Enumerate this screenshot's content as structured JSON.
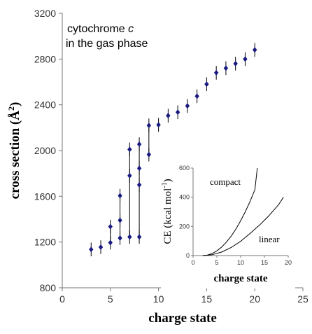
{
  "chart_data": [
    {
      "type": "scatter",
      "title": "",
      "annotation_line1": "cytochrome",
      "annotation_italic": "c",
      "annotation_line2": "in the gas phase",
      "xlabel": "charge state",
      "ylabel_main": "cross section (Å",
      "ylabel_sup": "2",
      "ylabel_close": ")",
      "xlim": [
        0,
        25
      ],
      "ylim": [
        800,
        3200
      ],
      "xticks": [
        "0",
        "5",
        "10",
        "15",
        "20",
        "25"
      ],
      "yticks": [
        "800",
        "1200",
        "1600",
        "2000",
        "2400",
        "2800",
        "3200"
      ],
      "grid": false,
      "error_bar": 60,
      "points": [
        {
          "x": 3,
          "y": 1135
        },
        {
          "x": 4,
          "y": 1155
        },
        {
          "x": 5,
          "y": 1195
        },
        {
          "x": 5,
          "y": 1335
        },
        {
          "x": 6,
          "y": 1235
        },
        {
          "x": 6,
          "y": 1390
        },
        {
          "x": 6,
          "y": 1605
        },
        {
          "x": 7,
          "y": 1245
        },
        {
          "x": 7,
          "y": 1780
        },
        {
          "x": 7,
          "y": 2010
        },
        {
          "x": 8,
          "y": 1245
        },
        {
          "x": 8,
          "y": 1700
        },
        {
          "x": 8,
          "y": 1845
        },
        {
          "x": 8,
          "y": 2055
        },
        {
          "x": 9,
          "y": 1965
        },
        {
          "x": 9,
          "y": 2220
        },
        {
          "x": 10,
          "y": 2225
        },
        {
          "x": 11,
          "y": 2305
        },
        {
          "x": 12,
          "y": 2335
        },
        {
          "x": 13,
          "y": 2390
        },
        {
          "x": 14,
          "y": 2475
        },
        {
          "x": 15,
          "y": 2580
        },
        {
          "x": 16,
          "y": 2680
        },
        {
          "x": 17,
          "y": 2720
        },
        {
          "x": 18,
          "y": 2760
        },
        {
          "x": 19,
          "y": 2800
        },
        {
          "x": 20,
          "y": 2880
        }
      ],
      "connectors": [
        {
          "x": 5,
          "y1": 1195,
          "y2": 1335
        },
        {
          "x": 6,
          "y1": 1235,
          "y2": 1605
        },
        {
          "x": 7,
          "y1": 1245,
          "y2": 2010
        },
        {
          "x": 8,
          "y1": 1245,
          "y2": 2055
        },
        {
          "x": 9,
          "y1": 1965,
          "y2": 2220
        }
      ]
    },
    {
      "type": "line",
      "xlabel": "charge state",
      "ylabel_main": "CE (kcal mol",
      "ylabel_sup": "-1",
      "ylabel_close": ")",
      "xlim": [
        0,
        20
      ],
      "ylim": [
        0,
        600
      ],
      "xticks": [
        "0",
        "5",
        "10",
        "15",
        "20"
      ],
      "yticks": [
        "0",
        "200",
        "400",
        "600"
      ],
      "series": [
        {
          "name": "compact",
          "x": [
            2,
            3,
            4,
            5,
            6,
            7,
            8,
            9,
            10,
            11,
            12,
            13,
            13.5
          ],
          "y": [
            0,
            3,
            14,
            32,
            58,
            92,
            133,
            182,
            239,
            302,
            373,
            452,
            600
          ]
        },
        {
          "name": "linear",
          "x": [
            2,
            4,
            6,
            8,
            10,
            12,
            14,
            16,
            18,
            19
          ],
          "y": [
            0,
            6,
            24,
            55,
            98,
            152,
            210,
            275,
            350,
            400
          ]
        }
      ]
    }
  ]
}
